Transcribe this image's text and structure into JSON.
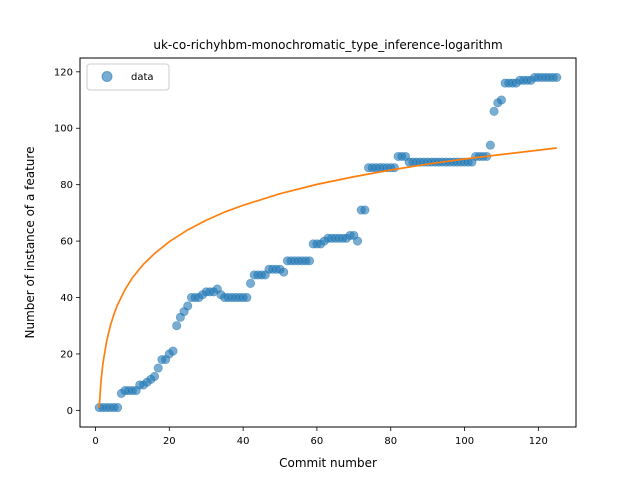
{
  "chart_data": {
    "type": "scatter",
    "title": "uk-co-richyhbm-monochromatic_type_inference-logarithm",
    "xlabel": "Commit number",
    "ylabel": "Number of instance of a feature",
    "xlim": [
      -4.2,
      130.2
    ],
    "ylim": [
      -5.9,
      124.9
    ],
    "xticks": [
      0,
      20,
      40,
      60,
      80,
      100,
      120
    ],
    "yticks": [
      0,
      20,
      40,
      60,
      80,
      100,
      120
    ],
    "grid": false,
    "legend": {
      "placement": "top-left",
      "entries": [
        "data"
      ]
    },
    "series": [
      {
        "name": "data",
        "kind": "scatter",
        "color": "#1f77b4",
        "x": [
          1,
          2,
          3,
          4,
          5,
          6,
          7,
          8,
          9,
          10,
          11,
          12,
          13,
          14,
          15,
          16,
          17,
          18,
          19,
          20,
          21,
          22,
          23,
          24,
          25,
          26,
          27,
          28,
          29,
          30,
          31,
          32,
          33,
          34,
          35,
          36,
          37,
          38,
          39,
          40,
          41,
          42,
          43,
          44,
          45,
          46,
          47,
          48,
          49,
          50,
          51,
          52,
          53,
          54,
          55,
          56,
          57,
          58,
          59,
          60,
          61,
          62,
          63,
          64,
          65,
          66,
          67,
          68,
          69,
          70,
          71,
          72,
          73,
          74,
          75,
          76,
          77,
          78,
          79,
          80,
          81,
          82,
          83,
          84,
          85,
          86,
          87,
          88,
          89,
          90,
          91,
          92,
          93,
          94,
          95,
          96,
          97,
          98,
          99,
          100,
          101,
          102,
          103,
          104,
          105,
          106,
          107,
          108,
          109,
          110,
          111,
          112,
          113,
          114,
          115,
          116,
          117,
          118,
          119,
          120,
          121,
          122,
          123,
          124,
          125
        ],
        "y": [
          1,
          1,
          1,
          1,
          1,
          1,
          6,
          7,
          7,
          7,
          7,
          9,
          9,
          10,
          11,
          12,
          15,
          18,
          18,
          20,
          21,
          30,
          33,
          35,
          37,
          40,
          40,
          40,
          41,
          42,
          42,
          42,
          43,
          41,
          40,
          40,
          40,
          40,
          40,
          40,
          40,
          45,
          48,
          48,
          48,
          48,
          50,
          50,
          50,
          50,
          49,
          53,
          53,
          53,
          53,
          53,
          53,
          53,
          59,
          59,
          59,
          60,
          61,
          61,
          61,
          61,
          61,
          61,
          62,
          62,
          60,
          71,
          71,
          86,
          86,
          86,
          86,
          86,
          86,
          86,
          86,
          90,
          90,
          90,
          88,
          88,
          88,
          88,
          88,
          88,
          88,
          88,
          88,
          88,
          88,
          88,
          88,
          88,
          88,
          88,
          88,
          88,
          90,
          90,
          90,
          90,
          94,
          106,
          109,
          110,
          116,
          116,
          116,
          116,
          117,
          117,
          117,
          117,
          118,
          118,
          118,
          118,
          118,
          118,
          118
        ]
      },
      {
        "name": "",
        "kind": "line",
        "color": "#ff7f0e",
        "x": [
          1,
          1.5,
          2,
          3,
          4,
          5,
          6,
          8,
          10,
          13,
          16,
          20,
          25,
          30,
          35,
          40,
          50,
          60,
          70,
          80,
          90,
          100,
          110,
          125
        ],
        "y": [
          1,
          10.5,
          16.5,
          24.4,
          29.9,
          34.1,
          37.5,
          42.8,
          47,
          51.8,
          55.6,
          59.8,
          64,
          67.4,
          70.3,
          72.7,
          76.8,
          80.1,
          82.8,
          85.2,
          87.3,
          89.1,
          90.7,
          93
        ]
      }
    ]
  }
}
